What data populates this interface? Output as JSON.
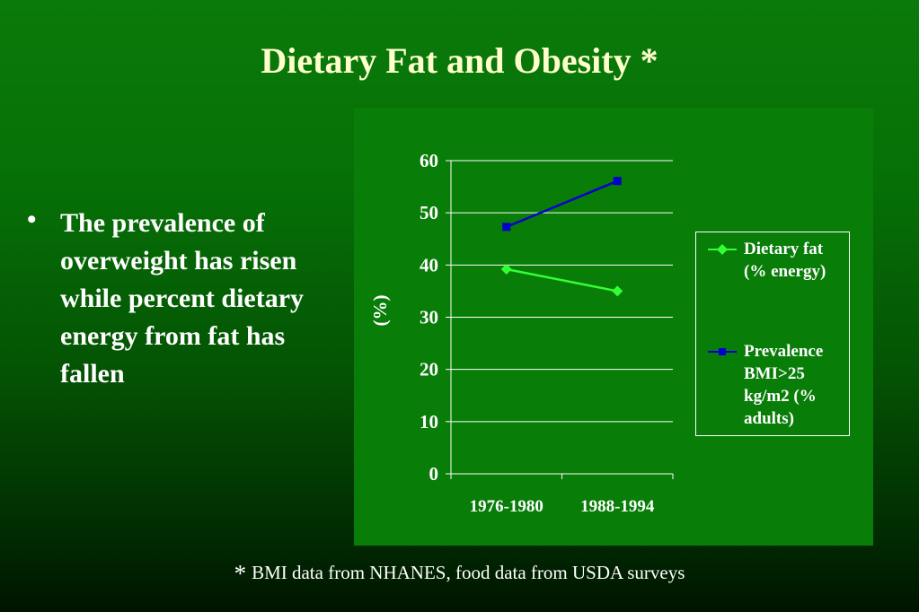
{
  "slide": {
    "title": "Dietary Fat and Obesity *",
    "bullet_symbol": "•",
    "bullet_text": "The prevalence of overweight has risen while percent dietary energy from fat has fallen",
    "footnote_marker": "*",
    "footnote_text": "BMI data from NHANES, food data from USDA surveys"
  },
  "chart_data": {
    "type": "line",
    "title": "",
    "xlabel": "",
    "ylabel": "(%)",
    "categories": [
      "1976-1980",
      "1988-1994"
    ],
    "ylim": [
      0,
      60
    ],
    "yticks": [
      "0",
      "10",
      "20",
      "30",
      "40",
      "50",
      "60"
    ],
    "grid": true,
    "legend_position": "right",
    "series": [
      {
        "name": "Dietary fat (% energy)",
        "label_lines": [
          "Dietary fat",
          "(%  energy)"
        ],
        "values": [
          39.2,
          35.0
        ],
        "color": "#33ff33",
        "marker": "diamond"
      },
      {
        "name": "Prevalence BMI>25 kg/m2 (% adults)",
        "label_lines": [
          "Prevalence",
          "BMI>25",
          "kg/m2 (%",
          "adults)"
        ],
        "values": [
          47.3,
          56.1
        ],
        "color": "#0000cc",
        "marker": "square"
      }
    ]
  }
}
